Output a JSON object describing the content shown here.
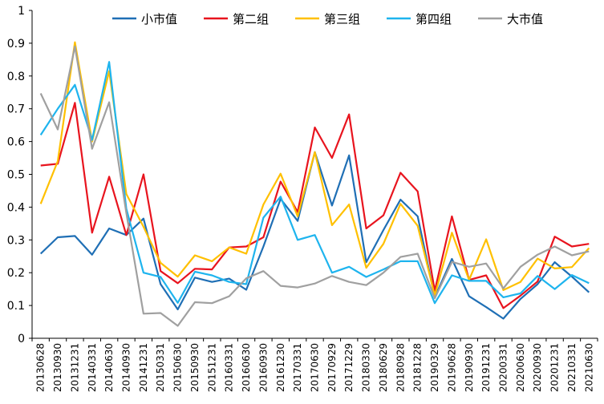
{
  "chart_data": {
    "type": "line",
    "title": "",
    "xlabel": "",
    "ylabel": "",
    "ylim": [
      0,
      1
    ],
    "yticks": [
      "0",
      "0.1",
      "0.2",
      "0.3",
      "0.4",
      "0.5",
      "0.6",
      "0.7",
      "0.8",
      "0.9",
      "1"
    ],
    "grid": false,
    "legend_position": "top",
    "categories": [
      "20130628",
      "20130930",
      "20131231",
      "20140331",
      "20140630",
      "20140930",
      "20141231",
      "20150331",
      "20150630",
      "20150930",
      "20151231",
      "20160331",
      "20160630",
      "20160930",
      "20161230",
      "20170331",
      "20170630",
      "20170929",
      "20171229",
      "20180330",
      "20180629",
      "20180928",
      "20181228",
      "20190329",
      "20190628",
      "20190930",
      "20191231",
      "20200331",
      "20200630",
      "20200930",
      "20201231",
      "20210331",
      "20210630"
    ],
    "series": [
      {
        "name": "小市值",
        "color": "#1f6fb5",
        "values": [
          0.258,
          0.308,
          0.312,
          0.255,
          0.335,
          0.315,
          0.365,
          0.165,
          0.088,
          0.185,
          0.172,
          0.182,
          0.148,
          0.28,
          0.425,
          0.358,
          0.568,
          0.405,
          0.558,
          0.232,
          0.33,
          0.423,
          0.372,
          0.125,
          0.242,
          0.128,
          0.095,
          0.06,
          0.12,
          0.165,
          0.232,
          0.188,
          0.14
        ]
      },
      {
        "name": "第二组",
        "color": "#e8141e",
        "values": [
          0.527,
          0.532,
          0.718,
          0.322,
          0.493,
          0.315,
          0.5,
          0.205,
          0.168,
          0.212,
          0.21,
          0.277,
          0.28,
          0.308,
          0.478,
          0.385,
          0.643,
          0.55,
          0.683,
          0.335,
          0.375,
          0.505,
          0.448,
          0.145,
          0.372,
          0.178,
          0.192,
          0.092,
          0.13,
          0.173,
          0.31,
          0.28,
          0.288
        ]
      },
      {
        "name": "第三组",
        "color": "#ffc000",
        "values": [
          0.41,
          0.54,
          0.903,
          0.6,
          0.815,
          0.44,
          0.34,
          0.23,
          0.188,
          0.253,
          0.235,
          0.277,
          0.258,
          0.408,
          0.502,
          0.372,
          0.568,
          0.345,
          0.408,
          0.215,
          0.288,
          0.41,
          0.343,
          0.13,
          0.322,
          0.178,
          0.302,
          0.147,
          0.172,
          0.243,
          0.213,
          0.217,
          0.275
        ]
      },
      {
        "name": "第四组",
        "color": "#1eb4ee",
        "values": [
          0.62,
          0.7,
          0.773,
          0.605,
          0.843,
          0.395,
          0.2,
          0.187,
          0.108,
          0.203,
          0.192,
          0.172,
          0.165,
          0.368,
          0.432,
          0.3,
          0.315,
          0.2,
          0.218,
          0.187,
          0.21,
          0.235,
          0.235,
          0.107,
          0.192,
          0.175,
          0.175,
          0.125,
          0.137,
          0.19,
          0.15,
          0.193,
          0.168
        ]
      },
      {
        "name": "大市值",
        "color": "#a0a0a0",
        "values": [
          0.747,
          0.637,
          0.89,
          0.578,
          0.72,
          0.382,
          0.075,
          0.077,
          0.038,
          0.11,
          0.107,
          0.128,
          0.183,
          0.205,
          0.16,
          0.155,
          0.167,
          0.19,
          0.172,
          0.162,
          0.2,
          0.248,
          0.258,
          0.122,
          0.233,
          0.218,
          0.228,
          0.152,
          0.218,
          0.255,
          0.28,
          0.253,
          0.265
        ]
      }
    ]
  }
}
